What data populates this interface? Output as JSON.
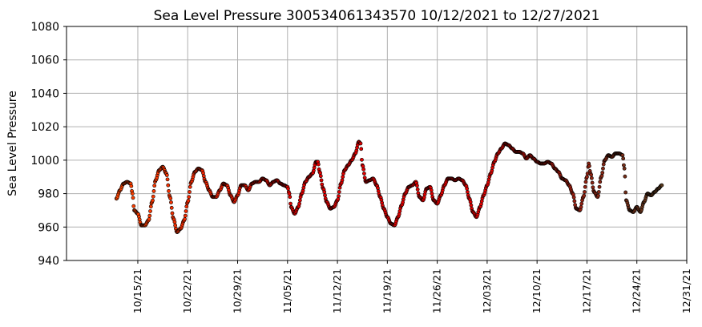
{
  "chart_data": {
    "type": "scatter",
    "title": "Sea Level Pressure 300534061343570  10/12/2021 to 12/27/2021",
    "xlabel": "",
    "ylabel": "Sea Level Pressure",
    "ylim": [
      940,
      1080
    ],
    "yticks": [
      940,
      960,
      980,
      1000,
      1020,
      1040,
      1060,
      1080
    ],
    "xlim": [
      "2021-10-05",
      "2021-12-31"
    ],
    "xticks": [
      {
        "date": "2021-10-15",
        "label": "10/15/21"
      },
      {
        "date": "2021-10-22",
        "label": "10/22/21"
      },
      {
        "date": "2021-10-29",
        "label": "10/29/21"
      },
      {
        "date": "2021-11-05",
        "label": "11/05/21"
      },
      {
        "date": "2021-11-12",
        "label": "11/12/21"
      },
      {
        "date": "2021-11-19",
        "label": "11/19/21"
      },
      {
        "date": "2021-11-26",
        "label": "11/26/21"
      },
      {
        "date": "2021-12-03",
        "label": "12/03/21"
      },
      {
        "date": "2021-12-10",
        "label": "12/10/21"
      },
      {
        "date": "2021-12-17",
        "label": "12/17/21"
      },
      {
        "date": "2021-12-24",
        "label": "12/24/21"
      },
      {
        "date": "2021-12-31",
        "label": "12/31/21"
      }
    ],
    "grid": true,
    "marker_edge_color": "#000000",
    "color_ramp": [
      "#ff4500",
      "#e00000",
      "#e00000",
      "#5a3a1e"
    ],
    "series": [
      {
        "points": [
          [
            "2021-10-12T00:00",
            977
          ],
          [
            "2021-10-12T12:00",
            982
          ],
          [
            "2021-10-13T00:00",
            986
          ],
          [
            "2021-10-13T12:00",
            987
          ],
          [
            "2021-10-14T00:00",
            986
          ],
          [
            "2021-10-14T06:00",
            980
          ],
          [
            "2021-10-14T12:00",
            970
          ],
          [
            "2021-10-15T00:00",
            968
          ],
          [
            "2021-10-15T12:00",
            961
          ],
          [
            "2021-10-16T00:00",
            961
          ],
          [
            "2021-10-16T12:00",
            964
          ],
          [
            "2021-10-17T00:00",
            975
          ],
          [
            "2021-10-17T12:00",
            988
          ],
          [
            "2021-10-18T00:00",
            994
          ],
          [
            "2021-10-18T12:00",
            996
          ],
          [
            "2021-10-19T00:00",
            992
          ],
          [
            "2021-10-19T12:00",
            978
          ],
          [
            "2021-10-20T00:00",
            965
          ],
          [
            "2021-10-20T12:00",
            957
          ],
          [
            "2021-10-21T00:00",
            959
          ],
          [
            "2021-10-21T12:00",
            964
          ],
          [
            "2021-10-22T00:00",
            975
          ],
          [
            "2021-10-22T12:00",
            987
          ],
          [
            "2021-10-23T00:00",
            993
          ],
          [
            "2021-10-23T12:00",
            995
          ],
          [
            "2021-10-24T00:00",
            994
          ],
          [
            "2021-10-24T12:00",
            987
          ],
          [
            "2021-10-25T00:00",
            982
          ],
          [
            "2021-10-25T12:00",
            978
          ],
          [
            "2021-10-26T00:00",
            978
          ],
          [
            "2021-10-26T12:00",
            982
          ],
          [
            "2021-10-27T00:00",
            986
          ],
          [
            "2021-10-27T12:00",
            985
          ],
          [
            "2021-10-28T00:00",
            979
          ],
          [
            "2021-10-28T12:00",
            975
          ],
          [
            "2021-10-29T00:00",
            979
          ],
          [
            "2021-10-29T12:00",
            985
          ],
          [
            "2021-10-30T00:00",
            985
          ],
          [
            "2021-10-30T12:00",
            982
          ],
          [
            "2021-10-31T00:00",
            986
          ],
          [
            "2021-10-31T12:00",
            987
          ],
          [
            "2021-11-01T00:00",
            987
          ],
          [
            "2021-11-01T12:00",
            989
          ],
          [
            "2021-11-02T00:00",
            988
          ],
          [
            "2021-11-02T12:00",
            985
          ],
          [
            "2021-11-03T00:00",
            987
          ],
          [
            "2021-11-03T12:00",
            988
          ],
          [
            "2021-11-04T00:00",
            986
          ],
          [
            "2021-11-04T12:00",
            985
          ],
          [
            "2021-11-05T00:00",
            984
          ],
          [
            "2021-11-05T06:00",
            980
          ],
          [
            "2021-11-05T12:00",
            972
          ],
          [
            "2021-11-06T00:00",
            968
          ],
          [
            "2021-11-06T12:00",
            972
          ],
          [
            "2021-11-07T00:00",
            980
          ],
          [
            "2021-11-07T12:00",
            987
          ],
          [
            "2021-11-08T00:00",
            990
          ],
          [
            "2021-11-08T12:00",
            992
          ],
          [
            "2021-11-09T00:00",
            999
          ],
          [
            "2021-11-09T06:00",
            999
          ],
          [
            "2021-11-09T12:00",
            993
          ],
          [
            "2021-11-10T00:00",
            983
          ],
          [
            "2021-11-10T12:00",
            975
          ],
          [
            "2021-11-11T00:00",
            971
          ],
          [
            "2021-11-11T12:00",
            972
          ],
          [
            "2021-11-12T00:00",
            976
          ],
          [
            "2021-11-12T12:00",
            986
          ],
          [
            "2021-11-13T00:00",
            994
          ],
          [
            "2021-11-13T12:00",
            997
          ],
          [
            "2021-11-14T00:00",
            1000
          ],
          [
            "2021-11-14T12:00",
            1004
          ],
          [
            "2021-11-15T00:00",
            1011
          ],
          [
            "2021-11-15T06:00",
            1010
          ],
          [
            "2021-11-15T12:00",
            997
          ],
          [
            "2021-11-16T00:00",
            987
          ],
          [
            "2021-11-16T12:00",
            988
          ],
          [
            "2021-11-17T00:00",
            989
          ],
          [
            "2021-11-17T12:00",
            985
          ],
          [
            "2021-11-18T00:00",
            978
          ],
          [
            "2021-11-18T12:00",
            971
          ],
          [
            "2021-11-19T00:00",
            966
          ],
          [
            "2021-11-19T12:00",
            962
          ],
          [
            "2021-11-20T00:00",
            961
          ],
          [
            "2021-11-20T12:00",
            966
          ],
          [
            "2021-11-21T00:00",
            973
          ],
          [
            "2021-11-21T12:00",
            980
          ],
          [
            "2021-11-22T00:00",
            984
          ],
          [
            "2021-11-22T12:00",
            985
          ],
          [
            "2021-11-23T00:00",
            987
          ],
          [
            "2021-11-23T12:00",
            978
          ],
          [
            "2021-11-24T00:00",
            976
          ],
          [
            "2021-11-24T12:00",
            983
          ],
          [
            "2021-11-25T00:00",
            984
          ],
          [
            "2021-11-25T12:00",
            976
          ],
          [
            "2021-11-26T00:00",
            974
          ],
          [
            "2021-11-26T12:00",
            979
          ],
          [
            "2021-11-27T00:00",
            985
          ],
          [
            "2021-11-27T12:00",
            989
          ],
          [
            "2021-11-28T00:00",
            989
          ],
          [
            "2021-11-28T12:00",
            988
          ],
          [
            "2021-11-29T00:00",
            989
          ],
          [
            "2021-11-29T12:00",
            988
          ],
          [
            "2021-11-30T00:00",
            985
          ],
          [
            "2021-11-30T12:00",
            977
          ],
          [
            "2021-12-01T00:00",
            969
          ],
          [
            "2021-12-01T12:00",
            966
          ],
          [
            "2021-12-02T00:00",
            972
          ],
          [
            "2021-12-02T12:00",
            979
          ],
          [
            "2021-12-03T00:00",
            985
          ],
          [
            "2021-12-03T12:00",
            992
          ],
          [
            "2021-12-04T00:00",
            999
          ],
          [
            "2021-12-04T12:00",
            1004
          ],
          [
            "2021-12-05T00:00",
            1007
          ],
          [
            "2021-12-05T12:00",
            1010
          ],
          [
            "2021-12-06T00:00",
            1009
          ],
          [
            "2021-12-06T12:00",
            1007
          ],
          [
            "2021-12-07T00:00",
            1005
          ],
          [
            "2021-12-07T12:00",
            1005
          ],
          [
            "2021-12-08T00:00",
            1004
          ],
          [
            "2021-12-08T12:00",
            1001
          ],
          [
            "2021-12-09T00:00",
            1003
          ],
          [
            "2021-12-09T12:00",
            1001
          ],
          [
            "2021-12-10T00:00",
            999
          ],
          [
            "2021-12-10T12:00",
            998
          ],
          [
            "2021-12-11T00:00",
            998
          ],
          [
            "2021-12-11T12:00",
            999
          ],
          [
            "2021-12-12T00:00",
            998
          ],
          [
            "2021-12-12T12:00",
            995
          ],
          [
            "2021-12-13T00:00",
            993
          ],
          [
            "2021-12-13T12:00",
            989
          ],
          [
            "2021-12-14T00:00",
            988
          ],
          [
            "2021-12-14T12:00",
            985
          ],
          [
            "2021-12-15T00:00",
            980
          ],
          [
            "2021-12-15T12:00",
            971
          ],
          [
            "2021-12-16T00:00",
            970
          ],
          [
            "2021-12-16T12:00",
            978
          ],
          [
            "2021-12-17T00:00",
            990
          ],
          [
            "2021-12-17T06:00",
            998
          ],
          [
            "2021-12-17T12:00",
            992
          ],
          [
            "2021-12-18T00:00",
            981
          ],
          [
            "2021-12-18T12:00",
            978
          ],
          [
            "2021-12-19T00:00",
            990
          ],
          [
            "2021-12-19T12:00",
            1000
          ],
          [
            "2021-12-20T00:00",
            1003
          ],
          [
            "2021-12-20T12:00",
            1002
          ],
          [
            "2021-12-21T00:00",
            1004
          ],
          [
            "2021-12-21T12:00",
            1004
          ],
          [
            "2021-12-22T00:00",
            1003
          ],
          [
            "2021-12-22T06:00",
            995
          ],
          [
            "2021-12-22T12:00",
            976
          ],
          [
            "2021-12-23T00:00",
            970
          ],
          [
            "2021-12-23T12:00",
            969
          ],
          [
            "2021-12-24T00:00",
            972
          ],
          [
            "2021-12-24T12:00",
            969
          ],
          [
            "2021-12-25T00:00",
            975
          ],
          [
            "2021-12-25T12:00",
            980
          ],
          [
            "2021-12-26T00:00",
            979
          ],
          [
            "2021-12-26T12:00",
            981
          ],
          [
            "2021-12-27T00:00",
            983
          ],
          [
            "2021-12-27T12:00",
            985
          ]
        ]
      }
    ]
  }
}
